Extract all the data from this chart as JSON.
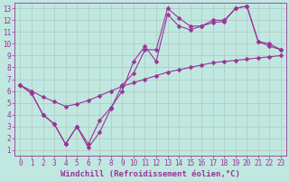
{
  "background_color": "#c0e8e0",
  "grid_color": "#b0c8c0",
  "line_color": "#993399",
  "marker": "D",
  "markersize": 2.5,
  "linewidth": 0.8,
  "xlabel": "Windchill (Refroidissement éolien,°C)",
  "xlabel_fontsize": 6.5,
  "tick_fontsize": 5.5,
  "xlim": [
    -0.5,
    23.5
  ],
  "ylim": [
    0.5,
    13.5
  ],
  "xticks": [
    0,
    1,
    2,
    3,
    4,
    5,
    6,
    7,
    8,
    9,
    10,
    11,
    12,
    13,
    14,
    15,
    16,
    17,
    18,
    19,
    20,
    21,
    22,
    23
  ],
  "yticks": [
    1,
    2,
    3,
    4,
    5,
    6,
    7,
    8,
    9,
    10,
    11,
    12,
    13
  ],
  "line1_x": [
    0,
    1,
    2,
    3,
    4,
    5,
    6,
    7,
    8,
    9,
    10,
    11,
    12,
    13,
    14,
    15,
    16,
    17,
    18,
    19,
    20,
    21,
    22,
    23
  ],
  "line1_y": [
    6.5,
    5.8,
    4.0,
    3.2,
    1.5,
    3.0,
    1.2,
    2.5,
    4.5,
    6.5,
    7.5,
    9.5,
    9.5,
    13.0,
    12.2,
    11.5,
    11.5,
    12.0,
    12.0,
    13.0,
    13.2,
    10.2,
    10.0,
    9.5
  ],
  "line2_x": [
    0,
    1,
    2,
    3,
    4,
    5,
    6,
    7,
    8,
    9,
    10,
    11,
    12,
    13,
    14,
    15,
    16,
    17,
    18,
    19,
    20,
    21,
    22,
    23
  ],
  "line2_y": [
    6.5,
    5.8,
    4.0,
    3.2,
    1.5,
    3.0,
    1.5,
    3.5,
    4.6,
    6.0,
    8.5,
    9.8,
    8.5,
    12.5,
    11.5,
    11.2,
    11.5,
    11.8,
    11.9,
    13.0,
    13.2,
    10.2,
    9.8,
    9.5
  ],
  "line3_x": [
    0,
    1,
    2,
    3,
    4,
    5,
    6,
    7,
    8,
    9,
    10,
    11,
    12,
    13,
    14,
    15,
    16,
    17,
    18,
    19,
    20,
    21,
    22,
    23
  ],
  "line3_y": [
    6.5,
    6.0,
    5.5,
    5.1,
    4.7,
    4.9,
    5.2,
    5.6,
    6.0,
    6.4,
    6.7,
    7.0,
    7.3,
    7.6,
    7.8,
    8.0,
    8.2,
    8.4,
    8.5,
    8.6,
    8.7,
    8.8,
    8.9,
    9.0
  ]
}
